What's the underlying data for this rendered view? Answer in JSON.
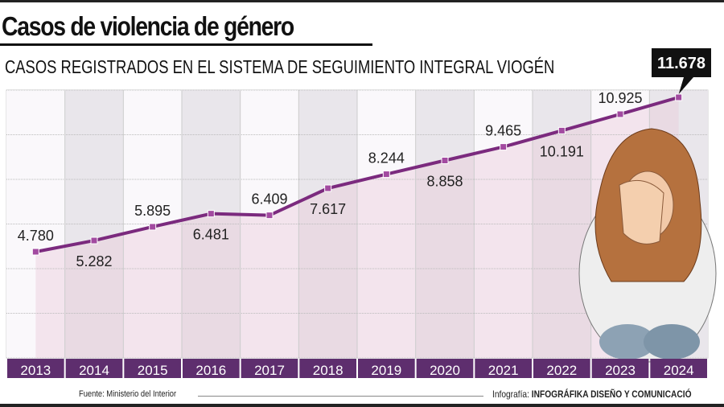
{
  "title": "Casos de violencia de género",
  "chart_data": {
    "type": "line",
    "title": "CASOS REGISTRADOS EN EL SISTEMA DE SEGUIMIENTO INTEGRAL VIOGÉN",
    "categories": [
      "2013",
      "2014",
      "2015",
      "2016",
      "2017",
      "2018",
      "2019",
      "2020",
      "2021",
      "2022",
      "2023",
      "2024"
    ],
    "values": [
      4780,
      5282,
      5895,
      6481,
      6409,
      7617,
      8244,
      8858,
      9465,
      10191,
      10925,
      11678
    ],
    "labels": [
      "4.780",
      "5.282",
      "5.895",
      "6.481",
      "6.409",
      "7.617",
      "8.244",
      "8.858",
      "9.465",
      "10.191",
      "10.925",
      "11.678"
    ],
    "highlight_label": "11.678",
    "grid": true,
    "colors": {
      "line": "#7b2a7e",
      "marker": "#a24aa0",
      "axis_bar": "#5e2e6e",
      "fill": "#f0dde8"
    }
  },
  "footer": {
    "source": "Fuente: Ministerio del Interior",
    "credit_prefix": "Infografía:",
    "credit_name": "INFOGRÁFIKA DISEÑO Y COMUNICACIÓ"
  }
}
